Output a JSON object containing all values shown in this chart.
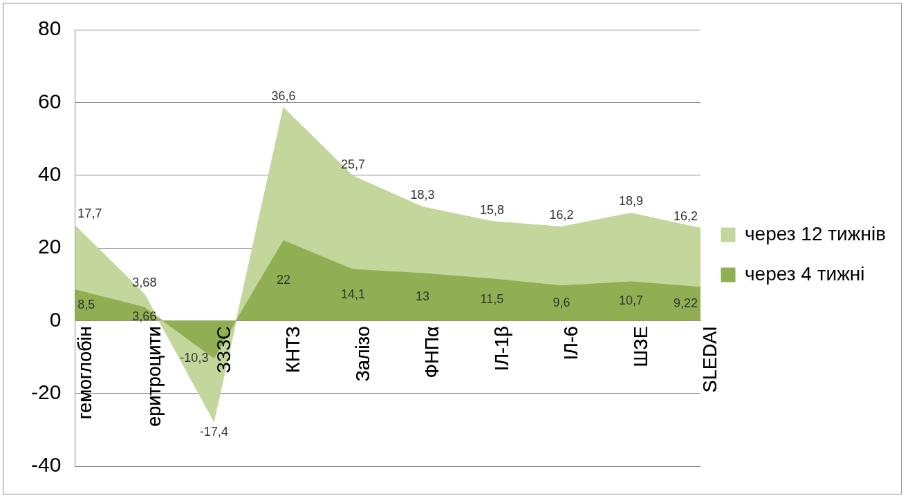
{
  "chart_data": {
    "type": "area",
    "stacked": true,
    "categories": [
      "гемоглобін",
      "еритроцити",
      "ЗЗЗС",
      "КНТЗ",
      "Залізо",
      "ФНПα",
      "ІЛ-1β",
      "ІЛ-6",
      "ШЗЕ",
      "SLEDAI"
    ],
    "series": [
      {
        "name": "через 4 тижні",
        "color": "#8faf52",
        "values": [
          8.5,
          3.66,
          -10.3,
          22,
          14.1,
          13,
          11.5,
          9.6,
          10.7,
          9.22
        ],
        "value_labels": [
          "8,5",
          "3,66",
          "-10,3",
          "22",
          "14,1",
          "13",
          "11,5",
          "9,6",
          "10,7",
          "9,22"
        ]
      },
      {
        "name": "через 12 тижнів",
        "color": "#c3d69b",
        "values": [
          17.7,
          3.68,
          -17.4,
          36.6,
          25.7,
          18.3,
          15.8,
          16.2,
          18.9,
          16.2
        ],
        "value_labels": [
          "17,7",
          "3,68",
          "-17,4",
          "36,6",
          "25,7",
          "18,3",
          "15,8",
          "16,2",
          "18,9",
          "16,2"
        ]
      }
    ],
    "ylim": [
      -40,
      80
    ],
    "yticks": [
      -40,
      -20,
      0,
      20,
      40,
      60,
      80
    ],
    "grid": "y",
    "legend": "right"
  }
}
